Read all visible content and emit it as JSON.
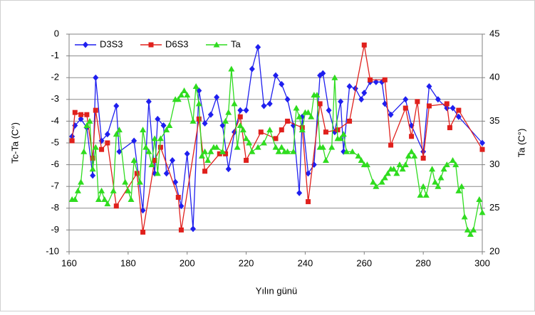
{
  "chart_data": {
    "type": "line",
    "xlabel": "Yılın günü",
    "ylabel": "Tc-Ta (C°)",
    "y2label": "Ta (C°)",
    "xlim": [
      160,
      300
    ],
    "xticks": [
      160,
      180,
      200,
      220,
      240,
      260,
      280,
      300
    ],
    "ylim": [
      -10,
      0
    ],
    "yticks": [
      0,
      -1,
      -2,
      -3,
      -4,
      -5,
      -6,
      -7,
      -8,
      -9,
      -10
    ],
    "y2lim": [
      20,
      45
    ],
    "y2ticks": [
      20,
      25,
      30,
      35,
      40,
      45
    ],
    "grid": true,
    "legend": "top-left",
    "series": [
      {
        "name": "D3S3",
        "color": "#1f1fef",
        "marker": "diamond",
        "x": [
          161,
          162,
          164,
          166,
          168,
          169,
          171,
          173,
          176,
          177,
          182,
          185,
          187,
          189,
          190,
          192,
          193,
          195,
          196,
          198,
          200,
          202,
          204,
          206,
          208,
          210,
          212,
          214,
          216,
          218,
          220,
          222,
          224,
          226,
          228,
          230,
          232,
          234,
          236,
          238,
          239,
          241,
          243,
          245,
          246,
          248,
          250,
          252,
          253,
          255,
          257,
          259,
          260,
          262,
          264,
          266,
          267,
          269,
          274,
          276,
          280,
          282,
          285,
          288,
          290,
          292,
          300
        ],
        "values": [
          -4.7,
          -4.2,
          -3.9,
          -4.3,
          -6.5,
          -2.0,
          -4.9,
          -4.6,
          -3.3,
          -5.4,
          -4.9,
          -8.1,
          -3.1,
          -6.4,
          -3.9,
          -4.2,
          -6.4,
          -5.8,
          -6.8,
          -7.9,
          -5.5,
          -8.95,
          -2.6,
          -4.1,
          -3.7,
          -2.9,
          -4.2,
          -6.2,
          -4.5,
          -3.5,
          -3.5,
          -1.6,
          -0.6,
          -3.3,
          -3.2,
          -1.9,
          -2.3,
          -3.0,
          -4.2,
          -7.3,
          -3.8,
          -6.4,
          -6.0,
          -1.9,
          -1.8,
          -3.5,
          -4.5,
          -3.1,
          -5.4,
          -2.4,
          -2.5,
          -3.0,
          -2.7,
          -2.2,
          -2.2,
          -2.2,
          -3.2,
          -3.7,
          -3.0,
          -4.2,
          -5.4,
          -2.4,
          -3.0,
          -3.4,
          -3.4,
          -3.8,
          -5.0
        ]
      },
      {
        "name": "D6S3",
        "color": "#e0201c",
        "marker": "square",
        "x": [
          161,
          162,
          164,
          166,
          168,
          169,
          171,
          173,
          176,
          183,
          185,
          189,
          191,
          197,
          198,
          204,
          206,
          211,
          213,
          218,
          220,
          225,
          230,
          232,
          234,
          239,
          241,
          245,
          247,
          251,
          255,
          260,
          262,
          267,
          269,
          274,
          276,
          278,
          280,
          282,
          288,
          289,
          292,
          300
        ],
        "values": [
          -4.9,
          -3.6,
          -3.7,
          -3.7,
          -5.7,
          -3.5,
          -5.3,
          -5.0,
          -7.9,
          -6.4,
          -9.1,
          -5.8,
          -5.2,
          -7.5,
          -9.0,
          -3.9,
          -6.3,
          -5.5,
          -5.5,
          -3.8,
          -5.8,
          -4.5,
          -4.8,
          -4.4,
          -4.0,
          -4.3,
          -7.7,
          -3.2,
          -4.5,
          -4.4,
          -4.0,
          -0.5,
          -2.1,
          -2.1,
          -5.1,
          -3.4,
          -4.7,
          -3.1,
          -5.7,
          -3.3,
          -3.2,
          -4.3,
          -3.5,
          -5.3
        ]
      },
      {
        "name": "Ta",
        "color": "#2fdc1f",
        "marker": "triangle",
        "axis": "y2",
        "x": [
          161,
          162,
          163,
          164,
          165,
          166,
          167,
          168,
          169,
          170,
          171,
          172,
          173,
          175,
          176,
          177,
          179,
          180,
          181,
          182,
          184,
          185,
          186,
          187,
          188,
          189,
          190,
          191,
          193,
          194,
          196,
          197,
          198,
          199,
          200,
          202,
          203,
          204,
          205,
          206,
          207,
          208,
          209,
          210,
          212,
          213,
          214,
          215,
          216,
          217,
          218,
          219,
          220,
          221,
          222,
          224,
          226,
          228,
          230,
          231,
          232,
          233,
          234,
          236,
          237,
          238,
          239,
          240,
          241,
          242,
          243,
          244,
          245,
          246,
          247,
          249,
          250,
          251,
          252,
          253,
          254,
          256,
          258,
          259,
          260,
          261,
          263,
          264,
          266,
          267,
          268,
          269,
          270,
          271,
          272,
          273,
          274,
          275,
          276,
          277,
          279,
          280,
          281,
          283,
          284,
          285,
          286,
          287,
          288,
          290,
          291,
          292,
          293,
          294,
          295,
          296,
          297,
          299,
          300
        ],
        "values": [
          26,
          26,
          27,
          28,
          31.5,
          34.5,
          35,
          29.5,
          32,
          26,
          27,
          26,
          25.5,
          27,
          33.5,
          34,
          28,
          27,
          26,
          30.5,
          28,
          34,
          32,
          31.5,
          30,
          33,
          29,
          33,
          34,
          34.5,
          37.5,
          37.5,
          38,
          38.5,
          38,
          35,
          39,
          37,
          31,
          31.5,
          30.5,
          31.5,
          32,
          32,
          31.5,
          35,
          36,
          41,
          37,
          32,
          34.5,
          34,
          33,
          32.5,
          31.5,
          32,
          32.5,
          34,
          32,
          31.5,
          32,
          31.5,
          31.5,
          31.5,
          36.5,
          35.5,
          34,
          36,
          36,
          35.5,
          38,
          38,
          32,
          32,
          30.5,
          32,
          40,
          33,
          33,
          33.5,
          31.5,
          31.5,
          31,
          30.5,
          30,
          30,
          28,
          27.5,
          28,
          28.5,
          29,
          29.5,
          29.5,
          29,
          30,
          29.5,
          30,
          31,
          31.5,
          31,
          26.5,
          27.5,
          26.5,
          29.5,
          28,
          27.5,
          28.5,
          29.5,
          30,
          30.5,
          30,
          27,
          27.5,
          24,
          22.5,
          22,
          22.5,
          26,
          24.5
        ]
      }
    ]
  }
}
